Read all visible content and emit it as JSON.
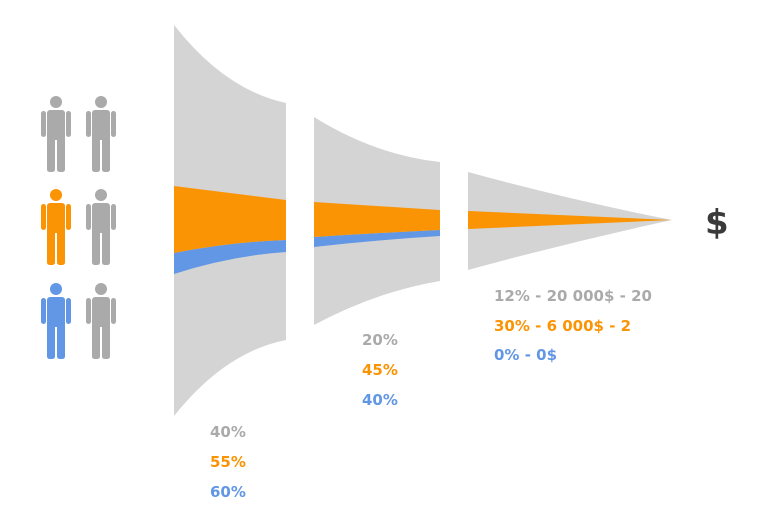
{
  "colors": {
    "funnel": "#d4d4d4",
    "gray": "#aaaaaa",
    "orange": "#fa9405",
    "blue": "#6297e5",
    "dark": "#3a3a3a"
  },
  "people": [
    {
      "color": "gray"
    },
    {
      "color": "gray"
    },
    {
      "color": "orange"
    },
    {
      "color": "gray"
    },
    {
      "color": "blue"
    },
    {
      "color": "gray"
    }
  ],
  "stages": [
    {
      "labels": [
        {
          "text": "40%",
          "color": "gray"
        },
        {
          "text": "55%",
          "color": "orange"
        },
        {
          "text": "60%",
          "color": "blue"
        }
      ]
    },
    {
      "labels": [
        {
          "text": "20%",
          "color": "gray"
        },
        {
          "text": "45%",
          "color": "orange"
        },
        {
          "text": "40%",
          "color": "blue"
        }
      ]
    },
    {
      "labels": [
        {
          "text": "12% - 20 000$ - 20",
          "color": "gray"
        },
        {
          "text": "30% - 6 000$ - 2",
          "color": "orange"
        },
        {
          "text": "0% - 0$",
          "color": "blue"
        }
      ]
    }
  ],
  "result_symbol": "$"
}
